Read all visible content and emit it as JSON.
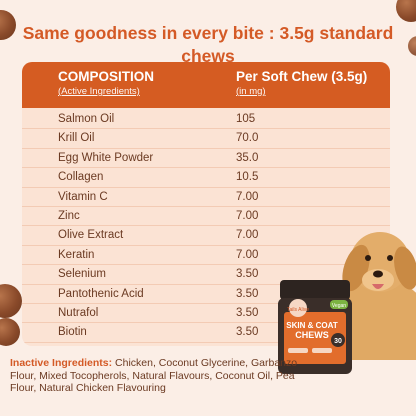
{
  "headline": "Same goodness in every bite : 3.5g standard chews",
  "table": {
    "col1_title": "COMPOSITION",
    "col1_subtitle": "(Active Ingredients)",
    "col2_title": "Per Soft Chew (3.5g)",
    "col2_subtitle": "(in mg)",
    "rows": [
      {
        "name": "Salmon Oil",
        "value": "105"
      },
      {
        "name": "Krill Oil",
        "value": "70.0"
      },
      {
        "name": "Egg White Powder",
        "value": "35.0"
      },
      {
        "name": "Collagen",
        "value": "10.5"
      },
      {
        "name": "Vitamin C",
        "value": "7.00"
      },
      {
        "name": "Zinc",
        "value": "7.00"
      },
      {
        "name": "Olive Extract",
        "value": "7.00"
      },
      {
        "name": "Keratin",
        "value": "7.00"
      },
      {
        "name": "Selenium",
        "value": "3.50"
      },
      {
        "name": "Pantothenic Acid",
        "value": "3.50"
      },
      {
        "name": "Nutrafol",
        "value": "3.50"
      },
      {
        "name": "Biotin",
        "value": "3.50"
      }
    ]
  },
  "inactive": {
    "label": "Inactive Ingredients:",
    "text": " Chicken, Coconut Glycerine, Garbanzo Flour, Mixed Tocopherols, Natural Flavours, Coconut Oil, Pea Flour, Natural Chicken Flavouring"
  },
  "product": {
    "brand": "Tails Alive",
    "name_line1": "SKIN & COAT",
    "name_line2": "CHEWS",
    "count": "30",
    "badge": "Vegan"
  },
  "colors": {
    "accent": "#d45a26",
    "header_bg": "#d55c22",
    "table_bg": "#fbe3d4",
    "page_bg": "#fbeee6",
    "text": "#6b3a22"
  }
}
